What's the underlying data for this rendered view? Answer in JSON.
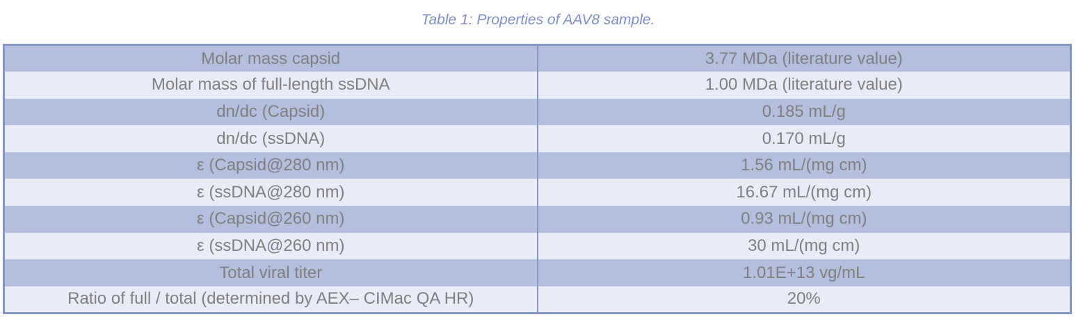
{
  "caption": "Table 1: Properties of AAV8 sample.",
  "colors": {
    "border": "#8494c4",
    "row_dark": "#b4bfdd",
    "row_light": "#e9ecf7",
    "text": "#808080",
    "caption_text": "#7e90ca"
  },
  "table": {
    "rows": [
      {
        "label": "Molar mass capsid",
        "value": "3.77 MDa (literature value)"
      },
      {
        "label": "Molar mass of full-length ssDNA",
        "value": "1.00 MDa (literature value)"
      },
      {
        "label": "dn/dc (Capsid)",
        "value": "0.185 mL/g"
      },
      {
        "label": "dn/dc (ssDNA)",
        "value": "0.170 mL/g"
      },
      {
        "label": "ε (Capsid@280 nm)",
        "value": "1.56 mL/(mg cm)"
      },
      {
        "label": "ε (ssDNA@280 nm)",
        "value": "16.67 mL/(mg cm)"
      },
      {
        "label": "ε (Capsid@260 nm)",
        "value": "0.93 mL/(mg cm)"
      },
      {
        "label": "ε (ssDNA@260 nm)",
        "value": "30 mL/(mg cm)"
      },
      {
        "label": "Total viral titer",
        "value": "1.01E+13 vg/mL"
      },
      {
        "label": "Ratio of full / total (determined by AEX– CIMac QA HR)",
        "value": "20%"
      }
    ]
  }
}
